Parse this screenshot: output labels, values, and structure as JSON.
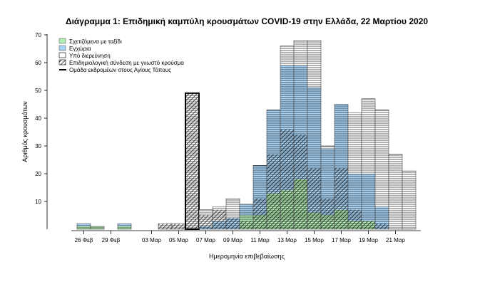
{
  "chart_data": {
    "type": "bar",
    "title": "Διάγραμμα 1: Επιδημική καμπύλη κρουσμάτων COVID-19 στην Ελλάδα, 22 Μαρτίου 2020",
    "xlabel": "Ημερομηνία επιβεβαίωσης",
    "ylabel": "Αριθμός κρουσμάτων",
    "ylim": [
      0,
      70
    ],
    "yticks": [
      10,
      20,
      30,
      40,
      50,
      60,
      70
    ],
    "grid": false,
    "legend_position": "top-left",
    "x_tick_labels": [
      "26 Φεβ",
      "29 Φεβ",
      "03 Μαρ",
      "05 Μαρ",
      "07 Μαρ",
      "09 Μαρ",
      "11 Μαρ",
      "13 Μαρ",
      "15 Μαρ",
      "17 Μαρ",
      "19 Μαρ",
      "21 Μαρ"
    ],
    "categories": [
      "26 Φεβ",
      "27 Φεβ",
      "28 Φεβ",
      "29 Φεβ",
      "01 Μαρ",
      "02 Μαρ",
      "03 Μαρ",
      "04 Μαρ",
      "05 Μαρ",
      "06 Μαρ",
      "07 Μαρ",
      "08 Μαρ",
      "09 Μαρ",
      "10 Μαρ",
      "11 Μαρ",
      "12 Μαρ",
      "13 Μαρ",
      "14 Μαρ",
      "15 Μαρ",
      "16 Μαρ",
      "17 Μαρ",
      "18 Μαρ",
      "19 Μαρ",
      "20 Μαρ",
      "21 Μαρ"
    ],
    "series": [
      {
        "name": "Σχετιζόμενα με ταξίδι",
        "color": "#b3ecb3",
        "values": [
          1,
          1,
          0,
          1,
          0,
          0,
          0,
          0,
          0,
          0,
          0,
          0,
          5,
          5,
          13,
          14,
          18,
          6,
          5,
          7,
          3,
          3,
          0,
          0,
          0
        ]
      },
      {
        "name": "Εγχώρια",
        "color": "#a9d4f5",
        "values": [
          1,
          0,
          0,
          1,
          0,
          0,
          0,
          0,
          0,
          1,
          3,
          4,
          4,
          18,
          30,
          45,
          41,
          45,
          24,
          38,
          17,
          17,
          8,
          0,
          0
        ]
      },
      {
        "name": "Υπό διερεύνηση",
        "color": "#ffffff",
        "values": [
          0,
          0,
          0,
          0,
          0,
          0,
          2,
          2,
          49,
          6,
          5,
          7,
          0,
          0,
          0,
          7,
          9,
          17,
          1,
          0,
          22,
          27,
          35,
          27,
          21
        ]
      }
    ],
    "epi_link_cases": [
      0,
      0,
      0,
      0,
      0,
      0,
      2,
      2,
      49,
      5,
      7,
      4,
      3,
      11,
      27,
      36,
      34,
      22,
      11,
      22,
      7,
      3,
      2,
      0,
      0
    ],
    "agios_topos_cluster_cases": [
      0,
      0,
      0,
      0,
      0,
      0,
      0,
      0,
      49,
      0,
      0,
      0,
      0,
      0,
      0,
      0,
      0,
      0,
      0,
      0,
      0,
      0,
      0,
      0,
      0
    ],
    "legend": [
      {
        "label": "Σχετιζόμενα με ταξίδι",
        "swatch": "travel"
      },
      {
        "label": "Εγχώρια",
        "swatch": "domestic"
      },
      {
        "label": "Υπό διερεύνηση",
        "swatch": "investigation"
      },
      {
        "label": "Επιδημιολογική σύνδεση με γνωστό κρούσμα",
        "swatch": "epi-link"
      },
      {
        "label": "Ομάδα εκδρομέων στους Αγίους Τόπους",
        "swatch": "cluster"
      }
    ]
  }
}
